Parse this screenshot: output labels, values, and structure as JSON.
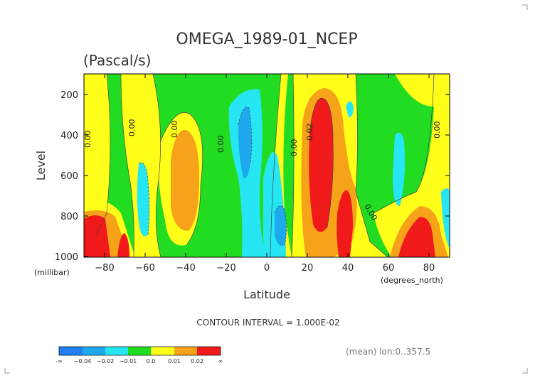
{
  "chart_data": {
    "type": "heatmap",
    "title": "OMEGA_1989-01_NCEP",
    "subtitle": "(Pascal/s)",
    "xlabel": "Latitude",
    "xunit": "(degrees_north)",
    "ylabel": "Level",
    "yunit": "(millibar)",
    "xlim": [
      -90,
      90
    ],
    "ylim": [
      1000,
      100
    ],
    "xticks": [
      "−80",
      "−60",
      "−40",
      "−20",
      "0",
      "20",
      "40",
      "60",
      "80"
    ],
    "yticks": [
      "200",
      "400",
      "600",
      "800",
      "1000"
    ],
    "contour_interval_text": "CONTOUR INTERVAL = 1.000E-02",
    "mean_text": "(mean) lon:0..357.5",
    "contour_labels": [
      "0.00",
      "0.00",
      "0.00",
      "0.00",
      "0.00",
      "0.02",
      "0.00",
      "0.00"
    ],
    "colorbar": {
      "labels": [
        "-∞",
        "−0.04",
        "−0.02",
        "−0.01",
        "0.0",
        "0.01",
        "0.02",
        "∞"
      ],
      "colors": [
        "#1f7ff0",
        "#1ea8ee",
        "#27e6f3",
        "#22dc22",
        "#ffff1a",
        "#f7a31a",
        "#f01a1a"
      ]
    },
    "levels": [
      -0.04,
      -0.02,
      -0.01,
      0.0,
      0.01,
      0.02
    ]
  }
}
